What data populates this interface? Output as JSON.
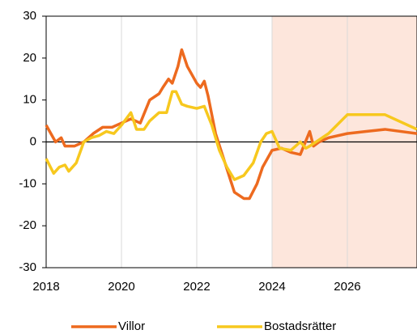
{
  "chart_data": {
    "type": "line",
    "xlim": [
      2018,
      2027.85
    ],
    "xticks": [
      2018,
      2020,
      2022,
      2024,
      2026
    ],
    "ylim": [
      -30,
      30
    ],
    "yticks": [
      -30,
      -20,
      -10,
      0,
      10,
      20,
      30
    ],
    "shaded_region": [
      2024,
      2027.85
    ],
    "shade_color": "#fde6dc",
    "grid": true,
    "series": [
      {
        "name": "Villor",
        "color": "#ed6a1f",
        "x": [
          2018.0,
          2018.25,
          2018.4,
          2018.5,
          2018.75,
          2019.0,
          2019.25,
          2019.5,
          2019.75,
          2020.0,
          2020.25,
          2020.5,
          2020.75,
          2021.0,
          2021.1,
          2021.25,
          2021.35,
          2021.5,
          2021.6,
          2021.75,
          2022.0,
          2022.1,
          2022.2,
          2022.3,
          2022.5,
          2022.75,
          2023.0,
          2023.25,
          2023.4,
          2023.6,
          2023.75,
          2024.0,
          2024.25,
          2024.5,
          2024.75,
          2025.0,
          2025.1,
          2025.25,
          2025.5,
          2026.0,
          2026.5,
          2027.0,
          2027.85
        ],
        "values": [
          4,
          0,
          1,
          -1,
          -1,
          0,
          2,
          3.5,
          3.5,
          4.5,
          5.5,
          4.5,
          10,
          11.5,
          13,
          15,
          14,
          18,
          22,
          18,
          14,
          13,
          14.5,
          11,
          2,
          -5,
          -12,
          -13.5,
          -13.5,
          -10,
          -6,
          -2,
          -1.5,
          -2.5,
          -3,
          2.5,
          -1,
          0,
          1,
          2,
          2.5,
          3,
          2
        ]
      },
      {
        "name": "Bostadsrätter",
        "color": "#f7c81e",
        "x": [
          2018.0,
          2018.2,
          2018.35,
          2018.5,
          2018.6,
          2018.8,
          2019.0,
          2019.2,
          2019.4,
          2019.6,
          2019.8,
          2020.0,
          2020.25,
          2020.4,
          2020.6,
          2020.75,
          2021.0,
          2021.2,
          2021.35,
          2021.45,
          2021.6,
          2021.75,
          2022.0,
          2022.2,
          2022.4,
          2022.6,
          2022.8,
          2023.0,
          2023.25,
          2023.5,
          2023.7,
          2023.85,
          2024.0,
          2024.2,
          2024.5,
          2024.75,
          2024.9,
          2025.0,
          2025.5,
          2026.0,
          2026.5,
          2027.0,
          2027.85
        ],
        "values": [
          -4,
          -7.5,
          -6,
          -5.5,
          -7,
          -5,
          0,
          1,
          1.5,
          2.5,
          2,
          4,
          7,
          3,
          3,
          5,
          7,
          7,
          12,
          12,
          9,
          8.5,
          8,
          8.5,
          4,
          -2,
          -6,
          -9,
          -8,
          -5,
          0,
          2,
          2.5,
          -1.5,
          -2,
          0,
          -1.5,
          -1,
          2,
          6.5,
          6.5,
          6.5,
          3
        ]
      }
    ]
  }
}
